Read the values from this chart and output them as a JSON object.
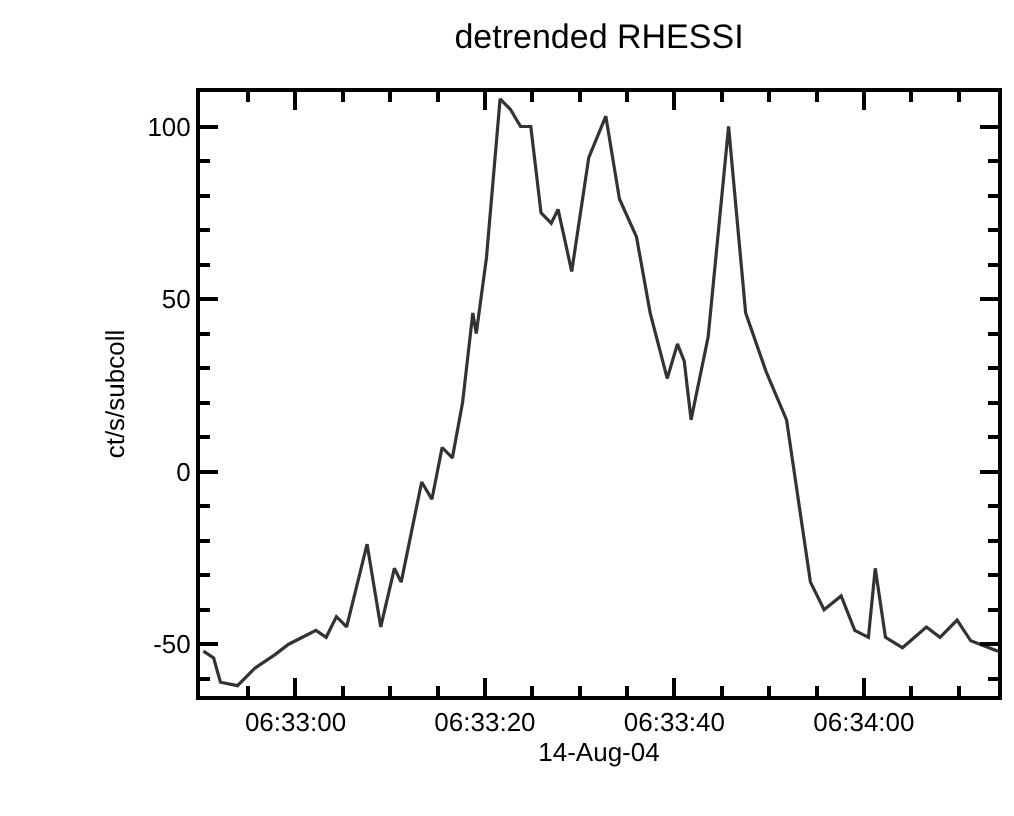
{
  "chart_data": {
    "type": "line",
    "title": "detrended RHESSI",
    "xlabel": "14-Aug-04",
    "ylabel": "ct/s/subcoll",
    "x": [
      6.5473,
      6.5476,
      6.5478,
      6.5483,
      6.5488,
      6.5494,
      6.5498,
      6.5506,
      6.5509,
      6.5512,
      6.5515,
      6.5521,
      6.5525,
      6.5529,
      6.5531,
      6.5537,
      6.554,
      6.5543,
      6.5546,
      6.5549,
      6.5552,
      6.5553,
      6.5556,
      6.556,
      6.5563,
      6.5566,
      6.5569,
      6.5572,
      6.5575,
      6.5577,
      6.5581,
      6.5586,
      6.5591,
      6.5595,
      6.56,
      6.5604,
      6.5609,
      6.5612,
      6.5614,
      6.5616,
      6.5621,
      6.5627,
      6.5632,
      6.5638,
      6.5644,
      6.5651,
      6.5655,
      6.566,
      6.5664,
      6.5668,
      6.567,
      6.5673,
      6.5678,
      6.5685,
      6.5689,
      6.5694,
      6.5698,
      6.5706
    ],
    "series": [
      {
        "color": "#333333",
        "values": [
          -52,
          -54,
          -61,
          -62,
          -57,
          -53,
          -50,
          -46,
          -48,
          -42,
          -45,
          -21,
          -45,
          -28,
          -32,
          -3,
          -8,
          7,
          4,
          20,
          46,
          40,
          62,
          108,
          105,
          100,
          100,
          75,
          72,
          76,
          58,
          91,
          103,
          79,
          68,
          46,
          27,
          37,
          32,
          15,
          39,
          100,
          46,
          29,
          15,
          -32,
          -40,
          -36,
          -46,
          -48,
          -28,
          -48,
          -51,
          -45,
          -48,
          -43,
          -49,
          -52
        ]
      }
    ],
    "xlim": [
      6.5472,
      6.5706
    ],
    "xticks": [
      {
        "value": 6.548611,
        "label": null
      },
      {
        "value": 6.55,
        "label": "06:33:00"
      },
      {
        "value": 6.551389,
        "label": null
      },
      {
        "value": 6.552778,
        "label": null
      },
      {
        "value": 6.554167,
        "label": null
      },
      {
        "value": 6.555556,
        "label": "06:33:20"
      },
      {
        "value": 6.556944,
        "label": null
      },
      {
        "value": 6.558333,
        "label": null
      },
      {
        "value": 6.559722,
        "label": null
      },
      {
        "value": 6.561111,
        "label": "06:33:40"
      },
      {
        "value": 6.5625,
        "label": null
      },
      {
        "value": 6.563889,
        "label": null
      },
      {
        "value": 6.565278,
        "label": null
      },
      {
        "value": 6.566667,
        "label": "06:34:00"
      },
      {
        "value": 6.568056,
        "label": null
      },
      {
        "value": 6.569444,
        "label": null
      }
    ],
    "ylim": [
      -65,
      110
    ],
    "yticks": [
      {
        "value": -60,
        "label": null
      },
      -50,
      {
        "value": -40,
        "label": null
      },
      {
        "value": -30,
        "label": null
      },
      {
        "value": -20,
        "label": null
      },
      {
        "value": -10,
        "label": null
      },
      0,
      {
        "value": 10,
        "label": null
      },
      {
        "value": 20,
        "label": null
      },
      {
        "value": 30,
        "label": null
      },
      {
        "value": 40,
        "label": null
      },
      50,
      {
        "value": 60,
        "label": null
      },
      {
        "value": 70,
        "label": null
      },
      {
        "value": 80,
        "label": null
      },
      {
        "value": 90,
        "label": null
      },
      100
    ],
    "marker": "none",
    "line_style": "solid"
  }
}
